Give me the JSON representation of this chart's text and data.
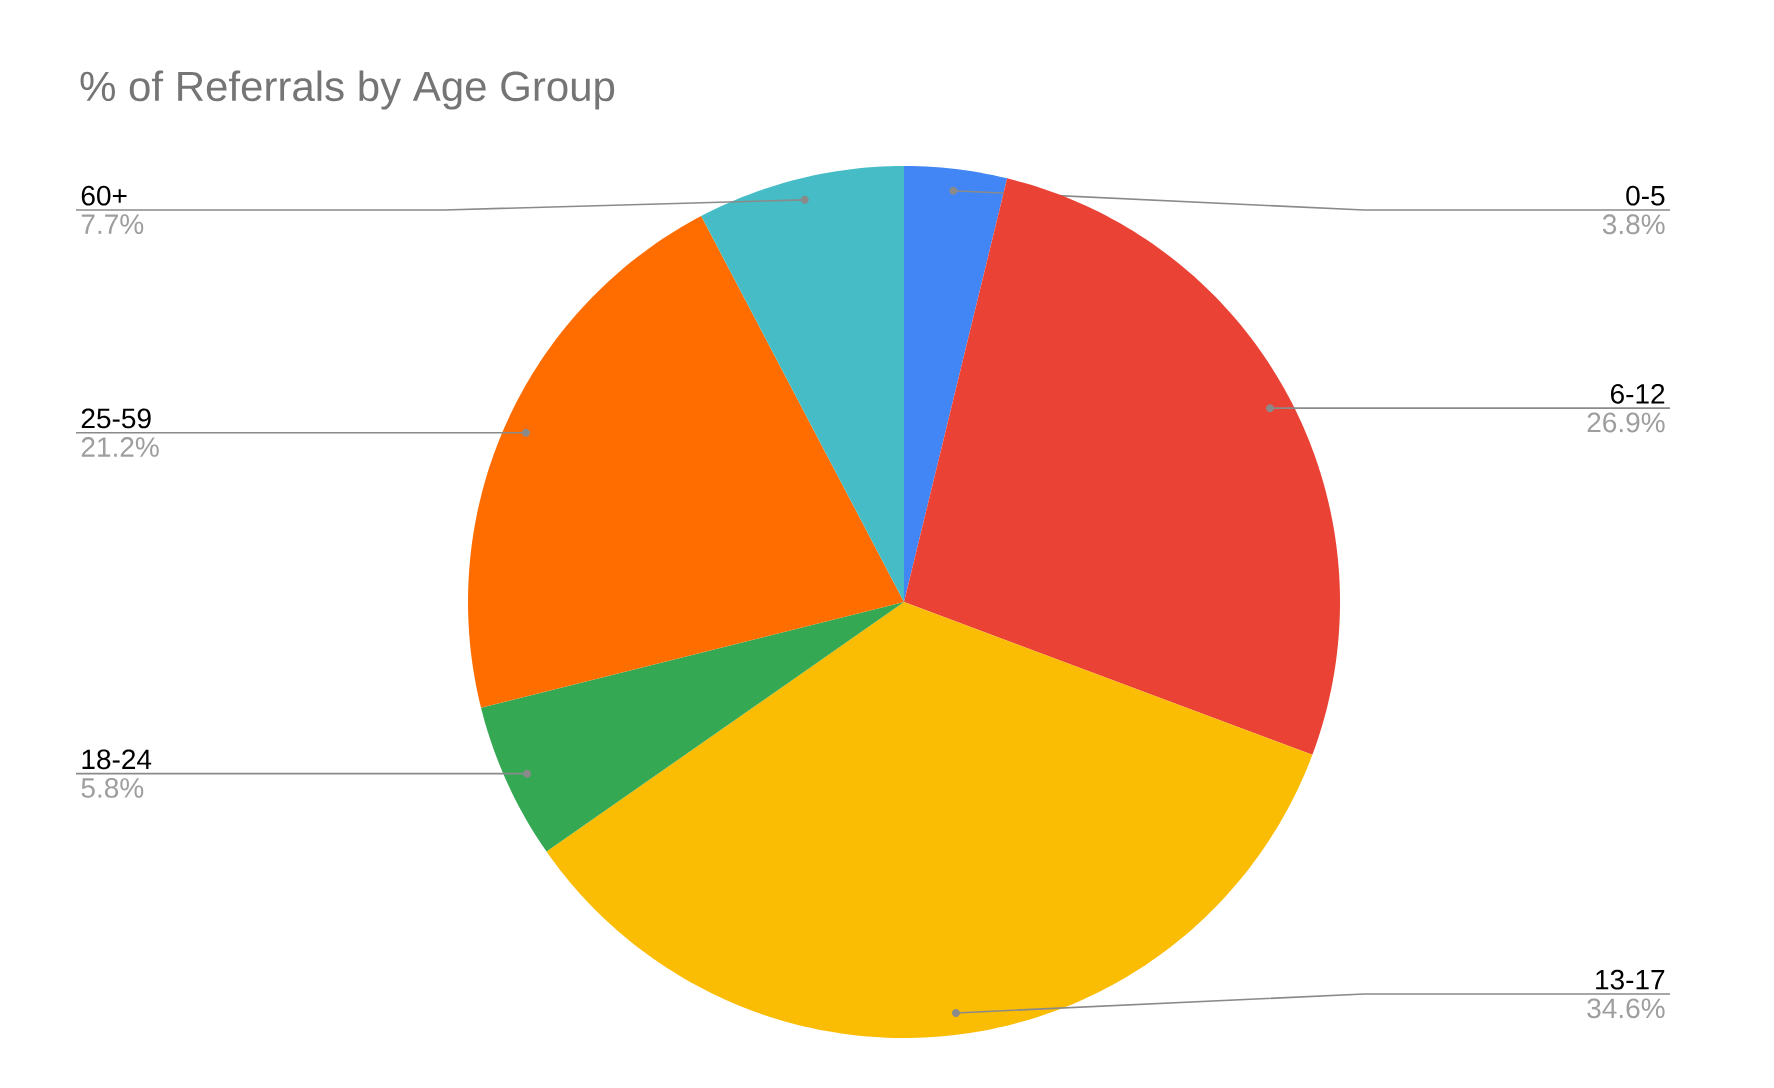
{
  "chart_data": {
    "type": "pie",
    "title": "% of Referrals by Age Group",
    "categories": [
      "0-5",
      "6-12",
      "13-17",
      "18-24",
      "25-59",
      "60+"
    ],
    "values": [
      3.8,
      26.9,
      34.6,
      5.8,
      21.2,
      7.7
    ],
    "value_labels": [
      "3.8%",
      "26.9%",
      "34.6%",
      "5.8%",
      "21.2%",
      "7.7%"
    ],
    "colors": [
      "#4285f4",
      "#ea4335",
      "#fbbc04",
      "#34a853",
      "#ff6d01",
      "#46bdc6"
    ]
  }
}
